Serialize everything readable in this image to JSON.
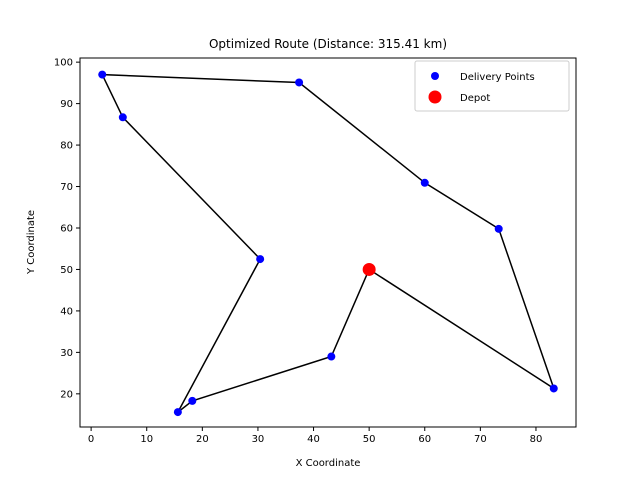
{
  "chart_data": {
    "type": "scatter",
    "title": "Optimized Route (Distance: 315.41 km)",
    "xlabel": "X Coordinate",
    "ylabel": "Y Coordinate",
    "xlim": [
      -2,
      87.2
    ],
    "ylim": [
      12,
      101
    ],
    "xticks": [
      0,
      10,
      20,
      30,
      40,
      50,
      60,
      70,
      80
    ],
    "yticks": [
      20,
      30,
      40,
      50,
      60,
      70,
      80,
      90,
      100
    ],
    "grid": false,
    "legend_position": "top-right",
    "series": [
      {
        "name": "Delivery Points",
        "color": "#0000ff",
        "points": [
          {
            "x": 2.0,
            "y": 97.0
          },
          {
            "x": 37.4,
            "y": 95.1
          },
          {
            "x": 5.7,
            "y": 86.7
          },
          {
            "x": 60.0,
            "y": 70.9
          },
          {
            "x": 73.3,
            "y": 59.8
          },
          {
            "x": 30.4,
            "y": 52.5
          },
          {
            "x": 43.2,
            "y": 29.0
          },
          {
            "x": 83.2,
            "y": 21.3
          },
          {
            "x": 18.2,
            "y": 18.3
          },
          {
            "x": 15.6,
            "y": 15.6
          }
        ]
      },
      {
        "name": "Depot",
        "color": "#ff0000",
        "points": [
          {
            "x": 50.0,
            "y": 50.0
          }
        ]
      }
    ],
    "route": {
      "color": "#000000",
      "points": [
        {
          "x": 50.0,
          "y": 50.0
        },
        {
          "x": 83.2,
          "y": 21.3
        },
        {
          "x": 73.3,
          "y": 59.8
        },
        {
          "x": 60.0,
          "y": 70.9
        },
        {
          "x": 37.4,
          "y": 95.1
        },
        {
          "x": 2.0,
          "y": 97.0
        },
        {
          "x": 5.7,
          "y": 86.7
        },
        {
          "x": 30.4,
          "y": 52.5
        },
        {
          "x": 15.6,
          "y": 15.6
        },
        {
          "x": 18.2,
          "y": 18.3
        },
        {
          "x": 43.2,
          "y": 29.0
        },
        {
          "x": 50.0,
          "y": 50.0
        }
      ]
    }
  }
}
